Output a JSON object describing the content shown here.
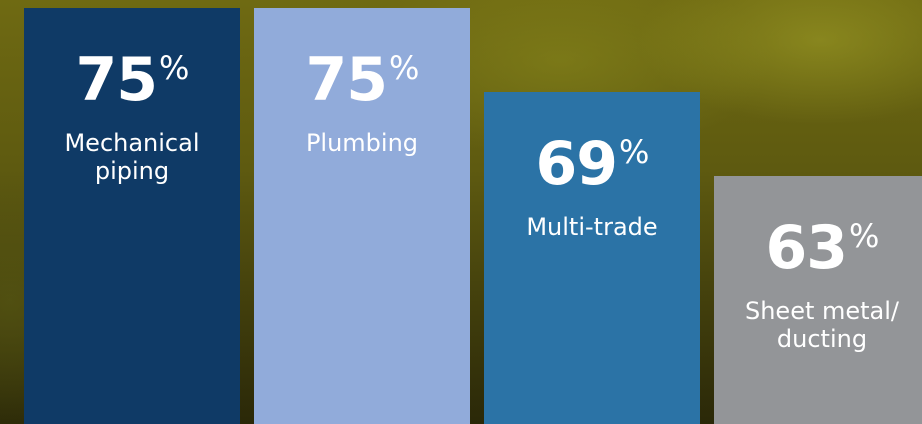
{
  "chart_data": {
    "type": "bar",
    "categories": [
      "Mechanical piping",
      "Plumbing",
      "Multi-trade",
      "Sheet metal/ ducting"
    ],
    "values": [
      75,
      75,
      69,
      63
    ],
    "unit": "%",
    "colors": [
      "#0f3a66",
      "#91abda",
      "#2b73a6",
      "#939598"
    ]
  }
}
